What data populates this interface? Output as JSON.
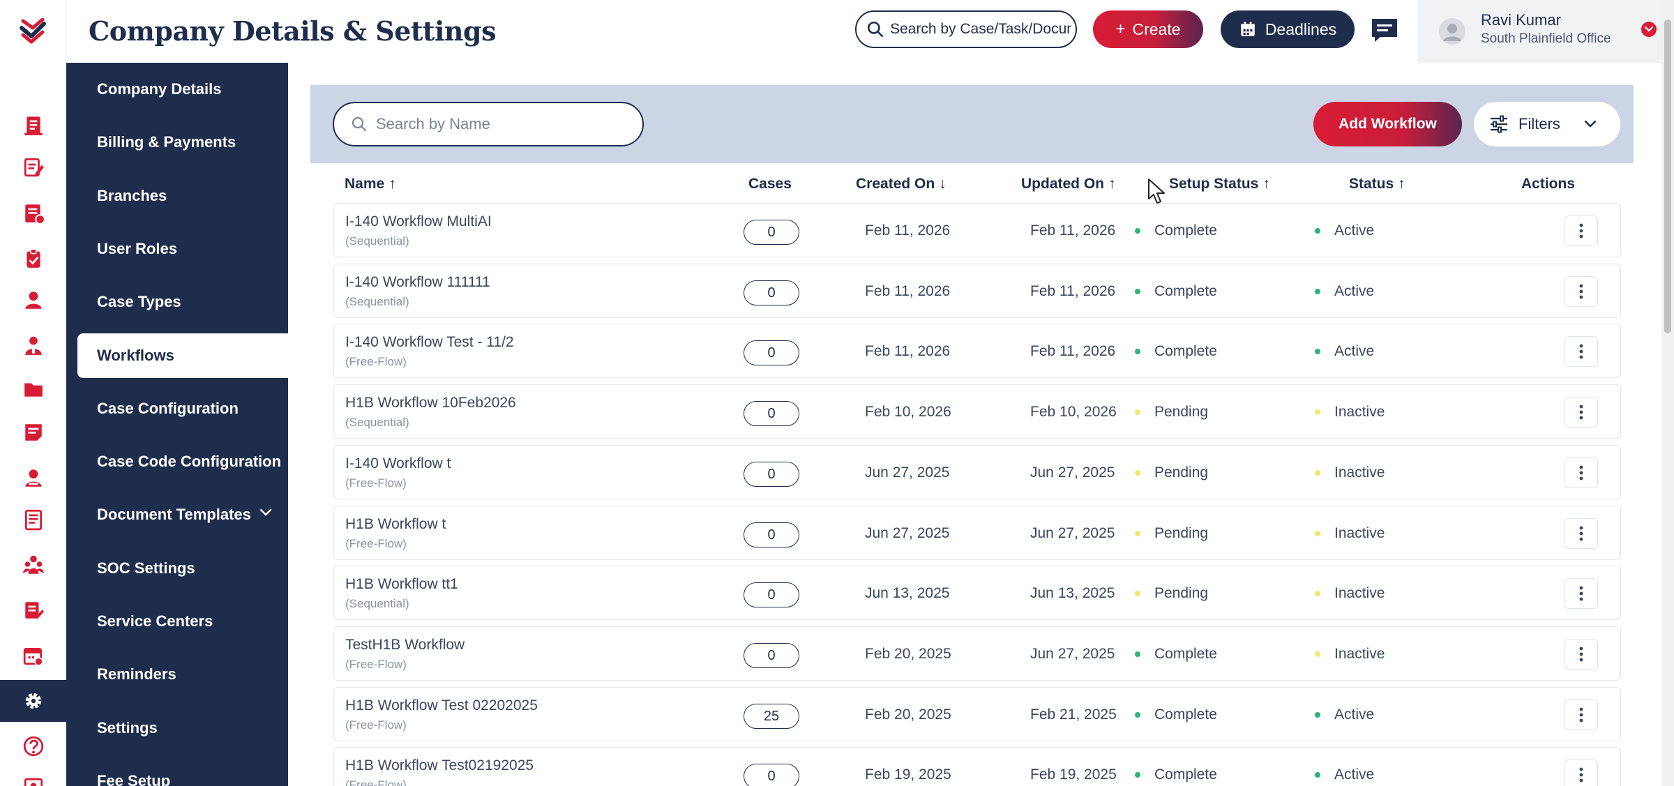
{
  "header": {
    "title": "Company Details & Settings",
    "search_placeholder": "Search by Case/Task/Document",
    "create_label": "Create",
    "deadlines_label": "Deadlines",
    "user_name": "Ravi Kumar",
    "user_office": "South Plainfield Office"
  },
  "rail_icons": [
    "document-icon",
    "edit-document-icon",
    "form-icon",
    "clipboard-icon",
    "person-icon",
    "client-icon",
    "folder-icon",
    "note-icon",
    "contact-icon",
    "report-icon",
    "team-icon",
    "template-icon",
    "calendar-settings-icon",
    "gear-icon",
    "help-icon",
    "id-card-icon"
  ],
  "menu": {
    "items": [
      {
        "label": "Company Details"
      },
      {
        "label": "Billing & Payments"
      },
      {
        "label": "Branches"
      },
      {
        "label": "User Roles"
      },
      {
        "label": "Case Types"
      },
      {
        "label": "Workflows"
      },
      {
        "label": "Case Configuration"
      },
      {
        "label": "Case Code Configuration"
      },
      {
        "label": "Document Templates"
      },
      {
        "label": "SOC Settings"
      },
      {
        "label": "Service Centers"
      },
      {
        "label": "Reminders"
      },
      {
        "label": "Settings"
      },
      {
        "label": "Fee Setup"
      }
    ],
    "active_index": 5
  },
  "toolbar": {
    "search_placeholder": "Search by Name",
    "add_label": "Add Workflow",
    "filters_label": "Filters"
  },
  "table": {
    "columns": [
      {
        "label": "Name",
        "sort": "↑"
      },
      {
        "label": "Cases",
        "sort": ""
      },
      {
        "label": "Created On",
        "sort": "↓"
      },
      {
        "label": "Updated On",
        "sort": "↑"
      },
      {
        "label": "Setup Status",
        "sort": "↑"
      },
      {
        "label": "Status",
        "sort": "↑"
      },
      {
        "label": "Actions",
        "sort": ""
      }
    ],
    "rows": [
      {
        "name": "I-140 Workflow MultiAI",
        "type": "(Sequential)",
        "cases": "0",
        "created": "Feb 11, 2026",
        "updated": "Feb 11, 2026",
        "setup": "Complete",
        "status": "Active"
      },
      {
        "name": "I-140 Workflow 111111",
        "type": "(Sequential)",
        "cases": "0",
        "created": "Feb 11, 2026",
        "updated": "Feb 11, 2026",
        "setup": "Complete",
        "status": "Active"
      },
      {
        "name": "I-140 Workflow Test - 11/2",
        "type": "(Free-Flow)",
        "cases": "0",
        "created": "Feb 11, 2026",
        "updated": "Feb 11, 2026",
        "setup": "Complete",
        "status": "Active"
      },
      {
        "name": "H1B Workflow 10Feb2026",
        "type": "(Sequential)",
        "cases": "0",
        "created": "Feb 10, 2026",
        "updated": "Feb 10, 2026",
        "setup": "Pending",
        "status": "Inactive"
      },
      {
        "name": "I-140 Workflow t",
        "type": "(Free-Flow)",
        "cases": "0",
        "created": "Jun 27, 2025",
        "updated": "Jun 27, 2025",
        "setup": "Pending",
        "status": "Inactive"
      },
      {
        "name": "H1B Workflow t",
        "type": "(Free-Flow)",
        "cases": "0",
        "created": "Jun 27, 2025",
        "updated": "Jun 27, 2025",
        "setup": "Pending",
        "status": "Inactive"
      },
      {
        "name": "H1B Workflow tt1",
        "type": "(Sequential)",
        "cases": "0",
        "created": "Jun 13, 2025",
        "updated": "Jun 13, 2025",
        "setup": "Pending",
        "status": "Inactive"
      },
      {
        "name": "TestH1B Workflow",
        "type": "(Free-Flow)",
        "cases": "0",
        "created": "Feb 20, 2025",
        "updated": "Jun 27, 2025",
        "setup": "Complete",
        "status": "Inactive"
      },
      {
        "name": "H1B Workflow Test 02202025",
        "type": "(Free-Flow)",
        "cases": "25",
        "created": "Feb 20, 2025",
        "updated": "Feb 21, 2025",
        "setup": "Complete",
        "status": "Active"
      },
      {
        "name": "H1B Workflow Test02192025",
        "type": "(Free-Flow)",
        "cases": "0",
        "created": "Feb 19, 2025",
        "updated": "Feb 19, 2025",
        "setup": "Complete",
        "status": "Active"
      }
    ]
  },
  "colors": {
    "navy": "#1f2d4d",
    "brand_red": "#d81c35",
    "status_green": "#2bb673",
    "status_yellow": "#f2e66b"
  }
}
